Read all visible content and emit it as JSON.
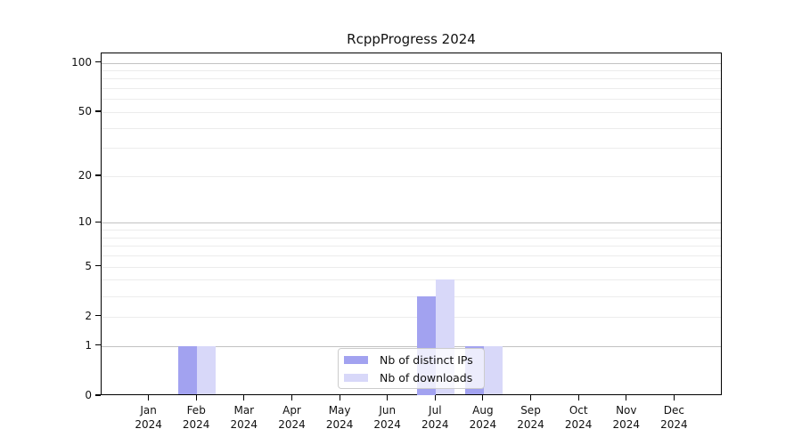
{
  "chart_data": {
    "type": "bar",
    "title": "RcppProgress 2024",
    "categories": [
      "Jan",
      "Feb",
      "Mar",
      "Apr",
      "May",
      "Jun",
      "Jul",
      "Aug",
      "Sep",
      "Oct",
      "Nov",
      "Dec"
    ],
    "x_label_second_line": "2024",
    "series": [
      {
        "name": "Nb of distinct IPs",
        "color": "#a2a2f0",
        "values": [
          0,
          1,
          0,
          0,
          0,
          0,
          3,
          1,
          0,
          0,
          0,
          0
        ]
      },
      {
        "name": "Nb of downloads",
        "color": "#d8d8f9",
        "values": [
          0,
          1,
          0,
          0,
          0,
          0,
          4,
          1,
          0,
          0,
          0,
          0
        ]
      }
    ],
    "y_scale": "log1p",
    "y_ticks": [
      0,
      1,
      2,
      5,
      10,
      20,
      50,
      100
    ],
    "y_axis_top_value": 114,
    "grid": {
      "major_lines": [
        1,
        10,
        100
      ],
      "minor_lines": [
        2,
        3,
        4,
        5,
        6,
        7,
        8,
        9,
        20,
        30,
        40,
        50,
        60,
        70,
        80,
        90
      ],
      "major_color": "#c2c2c2",
      "minor_color": "#ececec"
    },
    "legend": {
      "position": "bottom-center",
      "entries": [
        "Nb of distinct IPs",
        "Nb of downloads"
      ]
    }
  }
}
